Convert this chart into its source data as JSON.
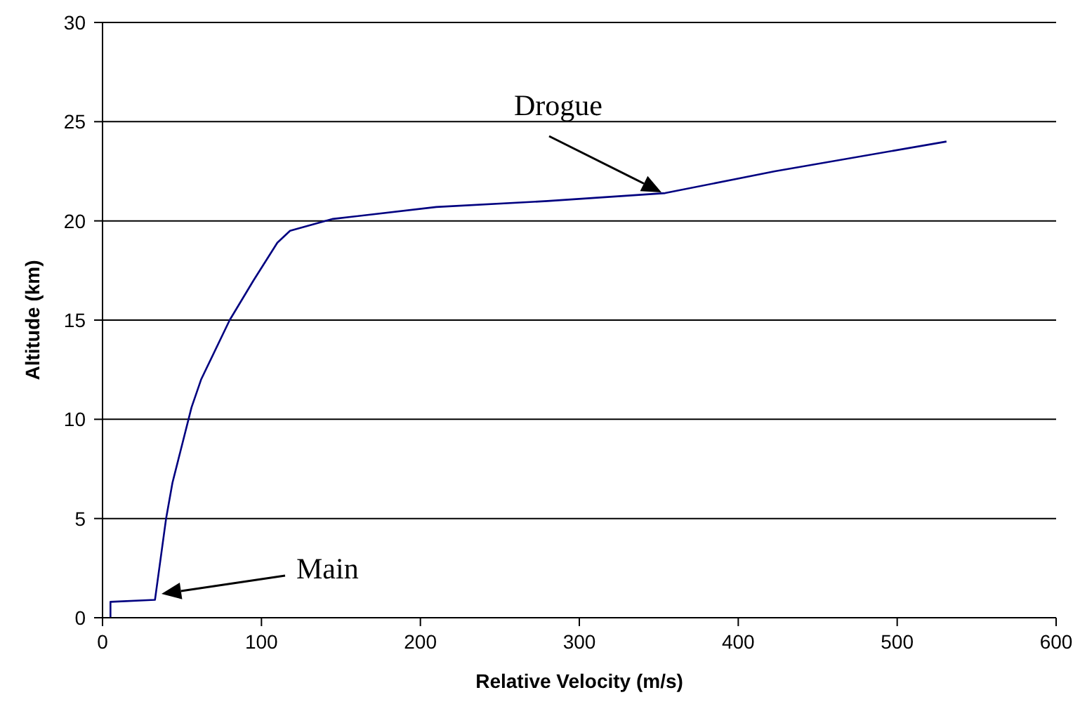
{
  "chart_data": {
    "type": "line",
    "xlabel": "Relative Velocity (m/s)",
    "ylabel": "Altitude (km)",
    "x": [
      5,
      5,
      33,
      40,
      44,
      56,
      62,
      80,
      95,
      110,
      118,
      145,
      210,
      280,
      354,
      423,
      531
    ],
    "series": [
      {
        "color": "#000080",
        "values": [
          0,
          0.8,
          0.9,
          5,
          6.8,
          10.6,
          12,
          15,
          17,
          18.9,
          19.5,
          20.1,
          20.7,
          21,
          21.4,
          22.5,
          24
        ]
      }
    ],
    "xlim": [
      0,
      600
    ],
    "xticks": [
      0,
      100,
      200,
      300,
      400,
      500,
      600
    ],
    "ylim": [
      0,
      30
    ],
    "yticks": [
      0,
      5,
      10,
      15,
      20,
      25,
      30
    ],
    "grid": "y",
    "marker": "none",
    "line_style": "solid",
    "annotations": [
      "Main",
      "Drogue"
    ]
  }
}
